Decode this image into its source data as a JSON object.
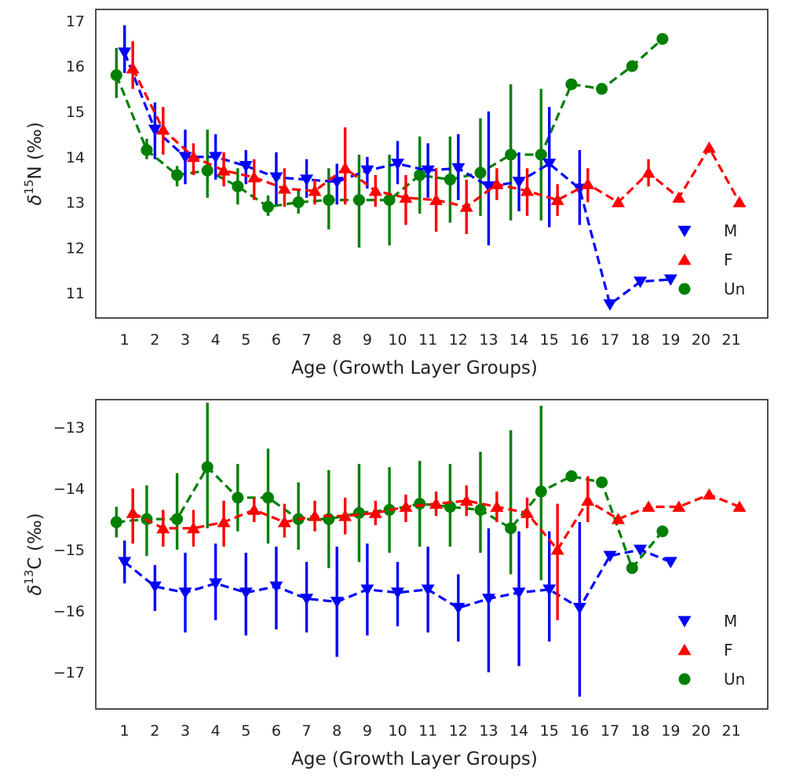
{
  "chart_data": [
    {
      "type": "line",
      "panel": "top",
      "title": "",
      "xlabel": "Age (Growth Layer Groups)",
      "ylabel_base": "δ",
      "ylabel_sup": "15",
      "ylabel_rest": "N (‰)",
      "xlim": [
        0.05,
        22.2
      ],
      "ylim": [
        10.45,
        17.25
      ],
      "xticks": [
        1,
        2,
        3,
        4,
        5,
        6,
        7,
        8,
        9,
        10,
        11,
        12,
        13,
        14,
        15,
        16,
        17,
        18,
        19,
        20,
        21
      ],
      "yticks": [
        11,
        12,
        13,
        14,
        15,
        16,
        17
      ],
      "y_tick_labels": [
        "11",
        "12",
        "13",
        "14",
        "15",
        "16",
        "17"
      ],
      "grid": false,
      "legend_position": "lower-right",
      "series": [
        {
          "name": "M",
          "color": "#0000ff",
          "marker": "triangle-down",
          "x_offset": 0.0,
          "points": [
            {
              "x": 1,
              "y": 16.3,
              "lo": 15.85,
              "hi": 16.9
            },
            {
              "x": 2,
              "y": 14.6,
              "lo": 13.95,
              "hi": 15.2
            },
            {
              "x": 3,
              "y": 14.0,
              "lo": 13.4,
              "hi": 14.6
            },
            {
              "x": 4,
              "y": 14.0,
              "lo": 13.5,
              "hi": 14.5
            },
            {
              "x": 5,
              "y": 13.8,
              "lo": 13.4,
              "hi": 14.15
            },
            {
              "x": 6,
              "y": 13.55,
              "lo": 12.95,
              "hi": 14.1
            },
            {
              "x": 7,
              "y": 13.5,
              "lo": 13.1,
              "hi": 13.95
            },
            {
              "x": 8,
              "y": 13.45,
              "lo": 12.95,
              "hi": 13.85
            },
            {
              "x": 9,
              "y": 13.7,
              "lo": 13.3,
              "hi": 14.0
            },
            {
              "x": 10,
              "y": 13.85,
              "lo": 13.4,
              "hi": 14.35
            },
            {
              "x": 11,
              "y": 13.7,
              "lo": 13.1,
              "hi": 14.3
            },
            {
              "x": 12,
              "y": 13.75,
              "lo": 13.05,
              "hi": 14.5
            },
            {
              "x": 13,
              "y": 13.35,
              "lo": 12.05,
              "hi": 15.0
            },
            {
              "x": 14,
              "y": 13.45,
              "lo": 12.8,
              "hi": 14.1
            },
            {
              "x": 15,
              "y": 13.85,
              "lo": 12.45,
              "hi": 15.1
            },
            {
              "x": 16,
              "y": 13.3,
              "lo": 12.5,
              "hi": 14.15
            },
            {
              "x": 17,
              "y": 10.75,
              "lo": null,
              "hi": null
            },
            {
              "x": 18,
              "y": 11.25,
              "lo": null,
              "hi": null
            },
            {
              "x": 19,
              "y": 11.3,
              "lo": null,
              "hi": null
            }
          ]
        },
        {
          "name": "F",
          "color": "#ff0000",
          "marker": "triangle-up",
          "x_offset": 0.27,
          "points": [
            {
              "x": 1,
              "y": 15.95,
              "lo": 15.5,
              "hi": 16.55
            },
            {
              "x": 2,
              "y": 14.6,
              "lo": 14.05,
              "hi": 15.1
            },
            {
              "x": 3,
              "y": 14.0,
              "lo": 13.6,
              "hi": 14.3
            },
            {
              "x": 4,
              "y": 13.7,
              "lo": 13.35,
              "hi": 14.1
            },
            {
              "x": 5,
              "y": 13.55,
              "lo": 13.05,
              "hi": 13.95
            },
            {
              "x": 6,
              "y": 13.3,
              "lo": 12.9,
              "hi": 13.75
            },
            {
              "x": 7,
              "y": 13.25,
              "lo": 12.95,
              "hi": 13.5
            },
            {
              "x": 8,
              "y": 13.75,
              "lo": 12.95,
              "hi": 14.65
            },
            {
              "x": 9,
              "y": 13.25,
              "lo": 12.9,
              "hi": 13.6
            },
            {
              "x": 10,
              "y": 13.1,
              "lo": 12.5,
              "hi": 13.6
            },
            {
              "x": 11,
              "y": 13.05,
              "lo": 12.35,
              "hi": 13.75
            },
            {
              "x": 12,
              "y": 12.9,
              "lo": 12.3,
              "hi": 13.5
            },
            {
              "x": 13,
              "y": 13.4,
              "lo": 13.05,
              "hi": 13.75
            },
            {
              "x": 14,
              "y": 13.25,
              "lo": 12.7,
              "hi": 13.75
            },
            {
              "x": 15,
              "y": 13.05,
              "lo": 12.7,
              "hi": 13.4
            },
            {
              "x": 16,
              "y": 13.4,
              "lo": 13.0,
              "hi": 13.75
            },
            {
              "x": 17,
              "y": 13.0,
              "lo": null,
              "hi": null
            },
            {
              "x": 18,
              "y": 13.65,
              "lo": 13.35,
              "hi": 13.95
            },
            {
              "x": 19,
              "y": 13.1,
              "lo": null,
              "hi": null
            },
            {
              "x": 20,
              "y": 14.2,
              "lo": null,
              "hi": null
            },
            {
              "x": 21,
              "y": 13.0,
              "lo": null,
              "hi": null
            }
          ]
        },
        {
          "name": "Un",
          "color": "#008000",
          "marker": "circle",
          "x_offset": -0.27,
          "points": [
            {
              "x": 1,
              "y": 15.8,
              "lo": 15.3,
              "hi": 16.4
            },
            {
              "x": 2,
              "y": 14.15,
              "lo": 13.95,
              "hi": 14.4
            },
            {
              "x": 3,
              "y": 13.6,
              "lo": 13.35,
              "hi": 13.8
            },
            {
              "x": 4,
              "y": 13.7,
              "lo": 13.1,
              "hi": 14.6
            },
            {
              "x": 5,
              "y": 13.35,
              "lo": 12.95,
              "hi": 13.75
            },
            {
              "x": 6,
              "y": 12.9,
              "lo": 12.7,
              "hi": 13.15
            },
            {
              "x": 7,
              "y": 13.0,
              "lo": 12.75,
              "hi": 13.3
            },
            {
              "x": 8,
              "y": 13.05,
              "lo": 12.4,
              "hi": 13.75
            },
            {
              "x": 9,
              "y": 13.05,
              "lo": 12.0,
              "hi": 14.05
            },
            {
              "x": 10,
              "y": 13.05,
              "lo": 12.05,
              "hi": 14.05
            },
            {
              "x": 11,
              "y": 13.6,
              "lo": 12.75,
              "hi": 14.45
            },
            {
              "x": 12,
              "y": 13.5,
              "lo": 12.55,
              "hi": 14.45
            },
            {
              "x": 13,
              "y": 13.65,
              "lo": 12.7,
              "hi": 14.85
            },
            {
              "x": 14,
              "y": 14.05,
              "lo": 12.6,
              "hi": 15.6
            },
            {
              "x": 15,
              "y": 14.05,
              "lo": 12.6,
              "hi": 15.5
            },
            {
              "x": 16,
              "y": 15.6,
              "lo": null,
              "hi": null
            },
            {
              "x": 17,
              "y": 15.5,
              "lo": null,
              "hi": null
            },
            {
              "x": 18,
              "y": 16.0,
              "lo": null,
              "hi": null
            },
            {
              "x": 19,
              "y": 16.6,
              "lo": null,
              "hi": null
            }
          ]
        }
      ]
    },
    {
      "type": "line",
      "panel": "bottom",
      "title": "",
      "xlabel": "Age (Growth Layer Groups)",
      "ylabel_base": "δ",
      "ylabel_sup": "13",
      "ylabel_rest": "C (‰)",
      "xlim": [
        0.05,
        22.2
      ],
      "ylim": [
        -17.6,
        -12.55
      ],
      "xticks": [
        1,
        2,
        3,
        4,
        5,
        6,
        7,
        8,
        9,
        10,
        11,
        12,
        13,
        14,
        15,
        16,
        17,
        18,
        19,
        20,
        21
      ],
      "yticks": [
        -17,
        -16,
        -15,
        -14,
        -13
      ],
      "y_tick_labels": [
        "−17",
        "−16",
        "−15",
        "−14",
        "−13"
      ],
      "grid": false,
      "legend_position": "lower-right",
      "series": [
        {
          "name": "M",
          "color": "#0000ff",
          "marker": "triangle-down",
          "x_offset": 0.0,
          "points": [
            {
              "x": 1,
              "y": -15.2,
              "lo": -15.55,
              "hi": -14.85
            },
            {
              "x": 2,
              "y": -15.6,
              "lo": -16.0,
              "hi": -15.25
            },
            {
              "x": 3,
              "y": -15.7,
              "lo": -16.35,
              "hi": -15.05
            },
            {
              "x": 4,
              "y": -15.55,
              "lo": -16.15,
              "hi": -14.9
            },
            {
              "x": 5,
              "y": -15.7,
              "lo": -16.4,
              "hi": -15.05
            },
            {
              "x": 6,
              "y": -15.6,
              "lo": -16.3,
              "hi": -14.95
            },
            {
              "x": 7,
              "y": -15.8,
              "lo": -16.35,
              "hi": -15.2
            },
            {
              "x": 8,
              "y": -15.85,
              "lo": -16.75,
              "hi": -14.95
            },
            {
              "x": 9,
              "y": -15.65,
              "lo": -16.4,
              "hi": -14.9
            },
            {
              "x": 10,
              "y": -15.7,
              "lo": -16.25,
              "hi": -15.2
            },
            {
              "x": 11,
              "y": -15.65,
              "lo": -16.35,
              "hi": -14.95
            },
            {
              "x": 12,
              "y": -15.95,
              "lo": -16.5,
              "hi": -15.4
            },
            {
              "x": 13,
              "y": -15.8,
              "lo": -17.0,
              "hi": -14.65
            },
            {
              "x": 14,
              "y": -15.7,
              "lo": -16.9,
              "hi": -14.7
            },
            {
              "x": 15,
              "y": -15.65,
              "lo": -16.5,
              "hi": -14.7
            },
            {
              "x": 16,
              "y": -15.95,
              "lo": -17.4,
              "hi": -14.55
            },
            {
              "x": 17,
              "y": -15.1,
              "lo": null,
              "hi": null
            },
            {
              "x": 18,
              "y": -15.0,
              "lo": null,
              "hi": null
            },
            {
              "x": 19,
              "y": -15.2,
              "lo": null,
              "hi": null
            }
          ]
        },
        {
          "name": "F",
          "color": "#ff0000",
          "marker": "triangle-up",
          "x_offset": 0.27,
          "points": [
            {
              "x": 1,
              "y": -14.4,
              "lo": -14.9,
              "hi": -14.0
            },
            {
              "x": 2,
              "y": -14.65,
              "lo": -14.95,
              "hi": -14.35
            },
            {
              "x": 3,
              "y": -14.65,
              "lo": -14.95,
              "hi": -14.35
            },
            {
              "x": 4,
              "y": -14.55,
              "lo": -14.95,
              "hi": -14.2
            },
            {
              "x": 5,
              "y": -14.35,
              "lo": -14.55,
              "hi": -14.15
            },
            {
              "x": 6,
              "y": -14.55,
              "lo": -14.8,
              "hi": -14.25
            },
            {
              "x": 7,
              "y": -14.45,
              "lo": -14.7,
              "hi": -14.2
            },
            {
              "x": 8,
              "y": -14.45,
              "lo": -14.75,
              "hi": -14.15
            },
            {
              "x": 9,
              "y": -14.4,
              "lo": -14.6,
              "hi": -14.2
            },
            {
              "x": 10,
              "y": -14.3,
              "lo": -14.55,
              "hi": -14.1
            },
            {
              "x": 11,
              "y": -14.25,
              "lo": -14.45,
              "hi": -14.05
            },
            {
              "x": 12,
              "y": -14.2,
              "lo": -14.45,
              "hi": -13.95
            },
            {
              "x": 13,
              "y": -14.3,
              "lo": -14.55,
              "hi": -14.05
            },
            {
              "x": 14,
              "y": -14.4,
              "lo": -14.65,
              "hi": -14.15
            },
            {
              "x": 15,
              "y": -15.0,
              "lo": -16.15,
              "hi": -14.25
            },
            {
              "x": 16,
              "y": -14.2,
              "lo": -14.55,
              "hi": -13.8
            },
            {
              "x": 17,
              "y": -14.5,
              "lo": null,
              "hi": null
            },
            {
              "x": 18,
              "y": -14.3,
              "lo": null,
              "hi": null
            },
            {
              "x": 19,
              "y": -14.3,
              "lo": null,
              "hi": null
            },
            {
              "x": 20,
              "y": -14.1,
              "lo": null,
              "hi": null
            },
            {
              "x": 21,
              "y": -14.3,
              "lo": null,
              "hi": null
            }
          ]
        },
        {
          "name": "Un",
          "color": "#008000",
          "marker": "circle",
          "x_offset": -0.27,
          "points": [
            {
              "x": 1,
              "y": -14.55,
              "lo": -14.8,
              "hi": -14.3
            },
            {
              "x": 2,
              "y": -14.5,
              "lo": -15.1,
              "hi": -13.95
            },
            {
              "x": 3,
              "y": -14.5,
              "lo": -15.0,
              "hi": -13.75
            },
            {
              "x": 4,
              "y": -13.65,
              "lo": -14.65,
              "hi": -12.6
            },
            {
              "x": 5,
              "y": -14.15,
              "lo": -14.7,
              "hi": -13.6
            },
            {
              "x": 6,
              "y": -14.15,
              "lo": -14.9,
              "hi": -13.35
            },
            {
              "x": 7,
              "y": -14.5,
              "lo": -15.0,
              "hi": -13.9
            },
            {
              "x": 8,
              "y": -14.5,
              "lo": -15.3,
              "hi": -13.7
            },
            {
              "x": 9,
              "y": -14.4,
              "lo": -15.2,
              "hi": -13.6
            },
            {
              "x": 10,
              "y": -14.35,
              "lo": -15.05,
              "hi": -13.65
            },
            {
              "x": 11,
              "y": -14.25,
              "lo": -14.95,
              "hi": -13.55
            },
            {
              "x": 12,
              "y": -14.3,
              "lo": -14.95,
              "hi": -13.6
            },
            {
              "x": 13,
              "y": -14.35,
              "lo": -15.05,
              "hi": -13.4
            },
            {
              "x": 14,
              "y": -14.65,
              "lo": -15.4,
              "hi": -13.05
            },
            {
              "x": 15,
              "y": -14.05,
              "lo": -15.5,
              "hi": -12.65
            },
            {
              "x": 16,
              "y": -13.8,
              "lo": null,
              "hi": null
            },
            {
              "x": 17,
              "y": -13.9,
              "lo": null,
              "hi": null
            },
            {
              "x": 18,
              "y": -15.3,
              "lo": null,
              "hi": null
            },
            {
              "x": 19,
              "y": -14.7,
              "lo": null,
              "hi": null
            }
          ]
        }
      ]
    }
  ]
}
